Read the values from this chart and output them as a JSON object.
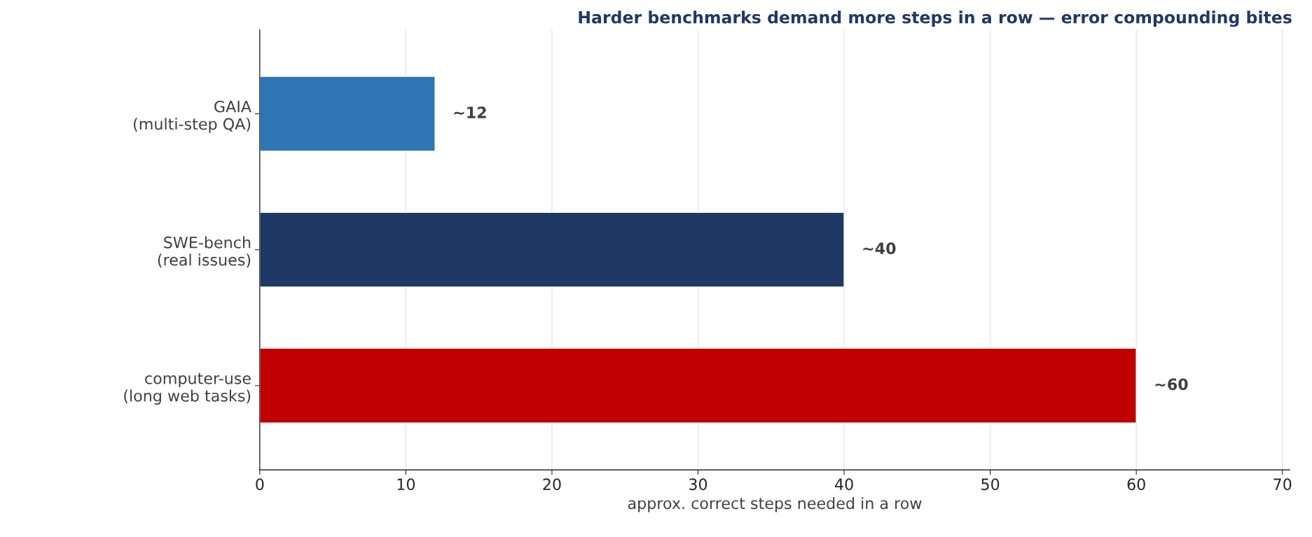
{
  "chart_data": {
    "type": "bar",
    "orientation": "horizontal",
    "title": "Harder benchmarks demand more steps in a row — error compounding bites",
    "xlabel": "approx. correct steps needed in a row",
    "categories": [
      "GAIA\n(multi-step QA)",
      "SWE-bench\n(real issues)",
      "computer-use\n(long web tasks)"
    ],
    "values": [
      12,
      40,
      60
    ],
    "colors": [
      "#2e75b6",
      "#203864",
      "#c00000"
    ],
    "value_labels": [
      "~12",
      "~40",
      "~60"
    ],
    "xlim": [
      0,
      70.5
    ],
    "xticks": [
      0,
      10,
      20,
      30,
      40,
      50,
      60,
      70
    ],
    "grid": "x"
  }
}
